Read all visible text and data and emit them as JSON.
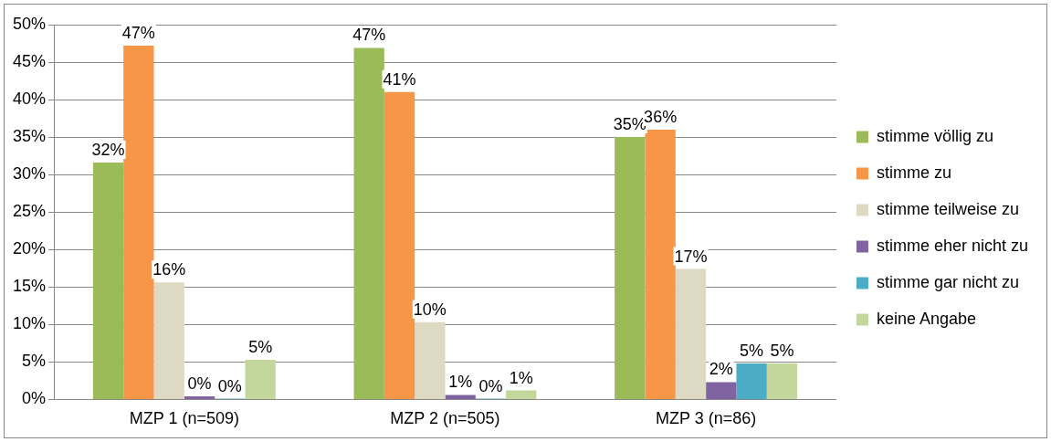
{
  "chart_data": {
    "type": "bar",
    "categories": [
      "MZP 1 (n=509)",
      "MZP 2 (n=505)",
      "MZP 3 (n=86)"
    ],
    "series": [
      {
        "name": "stimme völlig zu",
        "color": "#9bbb59",
        "values": [
          31.6,
          46.9,
          35
        ],
        "value_labels": [
          "32%",
          "47%",
          "35%"
        ]
      },
      {
        "name": "stimme zu",
        "color": "#f79646",
        "values": [
          47.2,
          41,
          36
        ],
        "value_labels": [
          "47%",
          "41%",
          "36%"
        ]
      },
      {
        "name": "stimme teilweise zu",
        "color": "#ddd9c3",
        "values": [
          15.6,
          10.3,
          17.4
        ],
        "value_labels": [
          "16%",
          "10%",
          "17%"
        ]
      },
      {
        "name": "stimme eher nicht zu",
        "color": "#8064a2",
        "values": [
          0.4,
          0.6,
          2.3
        ],
        "value_labels": [
          "0%",
          "1%",
          "2%"
        ]
      },
      {
        "name": "stimme gar nicht zu",
        "color": "#4bacc6",
        "values": [
          0.1,
          0.1,
          4.8
        ],
        "value_labels": [
          "0%",
          "0%",
          "5%"
        ]
      },
      {
        "name": "keine Angabe",
        "color": "#c3d69b",
        "values": [
          5.3,
          1.2,
          4.8
        ],
        "value_labels": [
          "5%",
          "1%",
          "5%"
        ]
      }
    ],
    "ylim": [
      0,
      50
    ],
    "yticks": [
      {
        "value": 0,
        "label": "0%"
      },
      {
        "value": 5,
        "label": "5%"
      },
      {
        "value": 10,
        "label": "10%"
      },
      {
        "value": 15,
        "label": "15%"
      },
      {
        "value": 20,
        "label": "20%"
      },
      {
        "value": 25,
        "label": "25%"
      },
      {
        "value": 30,
        "label": "30%"
      },
      {
        "value": 35,
        "label": "35%"
      },
      {
        "value": 40,
        "label": "40%"
      },
      {
        "value": 45,
        "label": "45%"
      },
      {
        "value": 50,
        "label": "50%"
      }
    ],
    "grid": "y",
    "legend": "right"
  }
}
